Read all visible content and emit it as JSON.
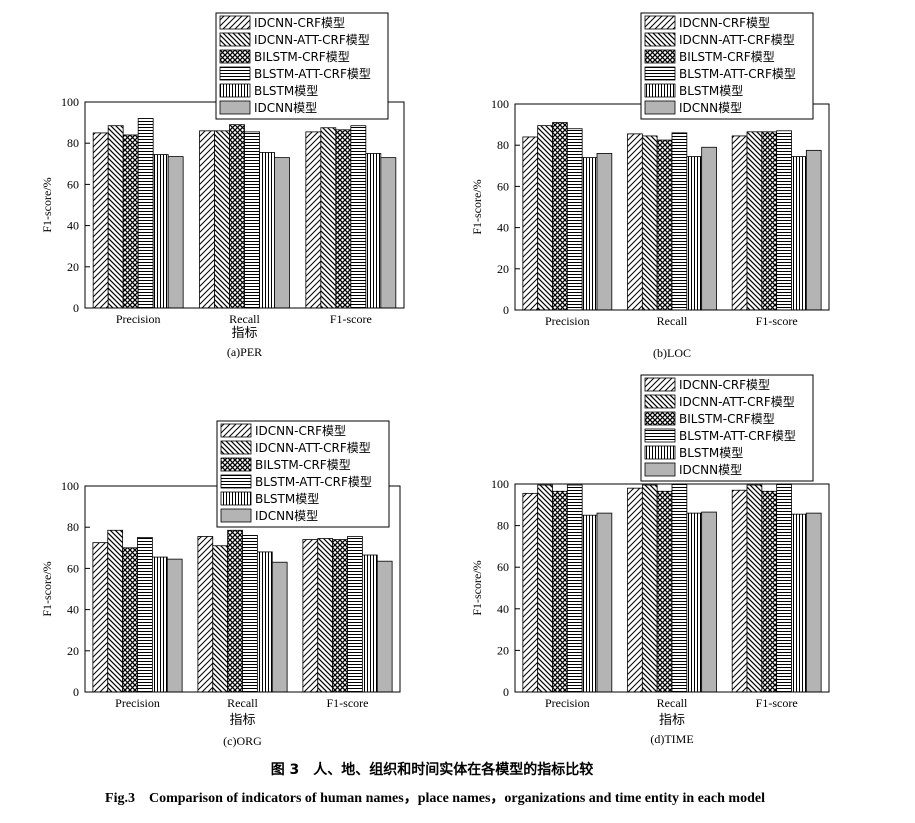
{
  "figure": {
    "caption_cn": "图 3　人、地、组织和时间实体在各模型的指标比较",
    "caption_en": "Fig.3　Comparison of indicators of human names，place names，organizations and time entity in each model"
  },
  "legend": {
    "entries": [
      "IDCNN-CRF模型",
      "IDCNN-ATT-CRF模型",
      "BILSTM-CRF模型",
      "BLSTM-ATT-CRF模型",
      "BLSTM模型",
      "IDCNN模型"
    ]
  },
  "chart_data": [
    {
      "type": "bar",
      "title": "",
      "subtitle": "(a)PER",
      "xlabel": "指标",
      "ylabel": "F1-score/%",
      "categories": [
        "Precision",
        "Recall",
        "F1-score"
      ],
      "ylim": [
        0,
        100
      ],
      "yticks": [
        0,
        20,
        40,
        60,
        80,
        100
      ],
      "legend_position": "top",
      "series": [
        {
          "name": "IDCNN-CRF模型",
          "values": [
            85,
            86,
            85.5
          ]
        },
        {
          "name": "IDCNN-ATT-CRF模型",
          "values": [
            88.5,
            86,
            87.5
          ]
        },
        {
          "name": "BILSTM-CRF模型",
          "values": [
            84,
            89,
            86.5
          ]
        },
        {
          "name": "BLSTM-ATT-CRF模型",
          "values": [
            92,
            85.5,
            88.5
          ]
        },
        {
          "name": "BLSTM模型",
          "values": [
            74.5,
            75.5,
            75
          ]
        },
        {
          "name": "IDCNN模型",
          "values": [
            73.5,
            73,
            73
          ]
        }
      ]
    },
    {
      "type": "bar",
      "title": "",
      "subtitle": "(b)LOC",
      "xlabel": "",
      "ylabel": "F1-score/%",
      "categories": [
        "Precision",
        "Recall",
        "F1-score"
      ],
      "ylim": [
        0,
        100
      ],
      "yticks": [
        0,
        20,
        40,
        60,
        80,
        100
      ],
      "legend_position": "top",
      "series": [
        {
          "name": "IDCNN-CRF模型",
          "values": [
            84,
            85.5,
            84.5
          ]
        },
        {
          "name": "IDCNN-ATT-CRF模型",
          "values": [
            89.5,
            84.5,
            86.5
          ]
        },
        {
          "name": "BILSTM-CRF模型",
          "values": [
            91,
            82.5,
            86.5
          ]
        },
        {
          "name": "BLSTM-ATT-CRF模型",
          "values": [
            88,
            86,
            87
          ]
        },
        {
          "name": "BLSTM模型",
          "values": [
            74,
            74.5,
            74.5
          ]
        },
        {
          "name": "IDCNN模型",
          "values": [
            76,
            79,
            77.5
          ]
        }
      ]
    },
    {
      "type": "bar",
      "title": "",
      "subtitle": "(c)ORG",
      "xlabel": "指标",
      "ylabel": "F1-score/%",
      "categories": [
        "Precision",
        "Recall",
        "F1-score"
      ],
      "ylim": [
        0,
        100
      ],
      "yticks": [
        0,
        20,
        40,
        60,
        80,
        100
      ],
      "legend_position": "top",
      "series": [
        {
          "name": "IDCNN-CRF模型",
          "values": [
            72.5,
            75.5,
            74
          ]
        },
        {
          "name": "IDCNN-ATT-CRF模型",
          "values": [
            78.5,
            71,
            74.5
          ]
        },
        {
          "name": "BILSTM-CRF模型",
          "values": [
            70,
            78.5,
            74
          ]
        },
        {
          "name": "BLSTM-ATT-CRF模型",
          "values": [
            75,
            76,
            75.5
          ]
        },
        {
          "name": "BLSTM模型",
          "values": [
            65.5,
            68,
            66.5
          ]
        },
        {
          "name": "IDCNN模型",
          "values": [
            64.5,
            63,
            63.5
          ]
        }
      ]
    },
    {
      "type": "bar",
      "title": "",
      "subtitle": "(d)TIME",
      "xlabel": "指标",
      "ylabel": "F1-score/%",
      "categories": [
        "Precision",
        "Recall",
        "F1-score"
      ],
      "ylim": [
        0,
        100
      ],
      "yticks": [
        0,
        20,
        40,
        60,
        80,
        100
      ],
      "legend_position": "top",
      "series": [
        {
          "name": "IDCNN-CRF模型",
          "values": [
            95.5,
            98,
            97
          ]
        },
        {
          "name": "IDCNN-ATT-CRF模型",
          "values": [
            99.5,
            99.5,
            99.5
          ]
        },
        {
          "name": "BILSTM-CRF模型",
          "values": [
            96.5,
            96.5,
            96.5
          ]
        },
        {
          "name": "BLSTM-ATT-CRF模型",
          "values": [
            99.5,
            100,
            100
          ]
        },
        {
          "name": "BLSTM模型",
          "values": [
            85,
            86,
            85.5
          ]
        },
        {
          "name": "IDCNN模型",
          "values": [
            86,
            86.5,
            86
          ]
        }
      ]
    }
  ]
}
